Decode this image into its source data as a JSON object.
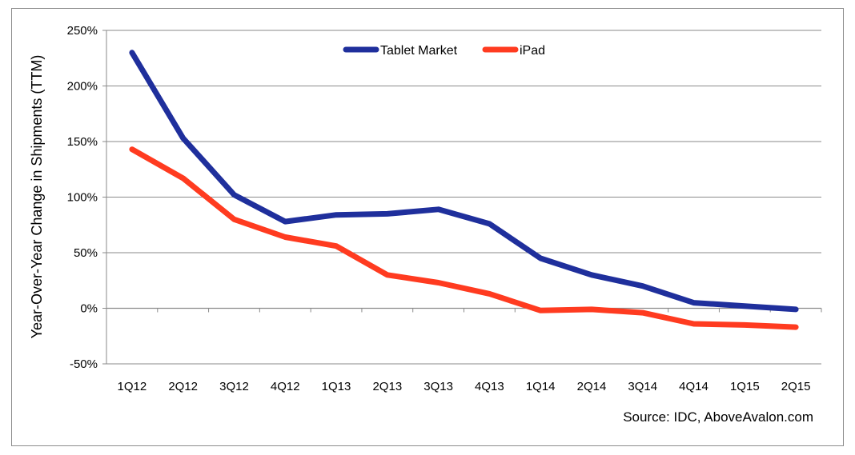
{
  "chart_data": {
    "type": "line",
    "title": "",
    "xlabel": "",
    "ylabel": "Year-Over-Year Change in Shipments (TTM)",
    "categories": [
      "1Q12",
      "2Q12",
      "3Q12",
      "4Q12",
      "1Q13",
      "2Q13",
      "3Q13",
      "4Q13",
      "1Q14",
      "2Q14",
      "3Q14",
      "4Q14",
      "1Q15",
      "2Q15"
    ],
    "ylim": [
      -50,
      250
    ],
    "yticks": [
      -50,
      0,
      50,
      100,
      150,
      200,
      250
    ],
    "ytick_labels": [
      "-50%",
      "0%",
      "50%",
      "100%",
      "150%",
      "200%",
      "250%"
    ],
    "grid": "horizontal",
    "legend_position": "top-center",
    "series": [
      {
        "name": "Tablet Market",
        "color": "#1f2f9c",
        "values": [
          230,
          153,
          102,
          78,
          84,
          85,
          89,
          76,
          45,
          30,
          20,
          5,
          2,
          -1
        ]
      },
      {
        "name": "iPad",
        "color": "#ff3b20",
        "values": [
          143,
          117,
          80,
          64,
          56,
          30,
          23,
          13,
          -2,
          -1,
          -4,
          -14,
          -15,
          -17
        ]
      }
    ],
    "source": "Source: IDC, AboveAvalon.com"
  }
}
